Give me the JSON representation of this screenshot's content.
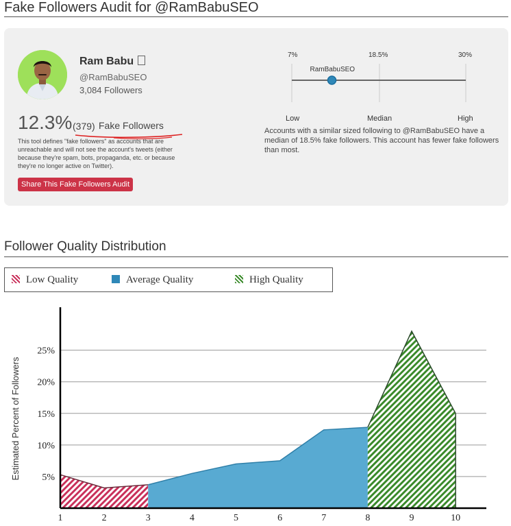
{
  "header": {
    "title": "Fake Followers Audit for @RamBabuSEO"
  },
  "profile": {
    "name": "Ram Babu",
    "handle": "@RamBabuSEO",
    "followers": "3,084 Followers",
    "avatar_color": "#9ee05a"
  },
  "audit": {
    "percent": "12.3%",
    "count": "(379)",
    "label": "Fake Followers",
    "description": "This tool defines \"fake followers\" as accounts that are unreachable and will not see the account's tweets (either because they're spam, bots, propaganda, etc. or because they're no longer active on Twitter).",
    "share_label": "Share This Fake Followers Audit",
    "accent_color": "#cc3347"
  },
  "scale": {
    "top_ticks": [
      "7%",
      "18.5%",
      "30%"
    ],
    "bottom_labels": [
      "Low",
      "Median",
      "High"
    ],
    "marker_label": "RamBabuSEO",
    "marker_value": 12.3,
    "min": 7,
    "median": 18.5,
    "max": 30,
    "marker_color": "#2f88b8"
  },
  "median_note": "Accounts with a similar sized following to @RamBabuSEO have a median of 18.5% fake followers. This account has fewer fake followers than most.",
  "section2": {
    "title": "Follower Quality Distribution"
  },
  "legend": {
    "low": "Low Quality",
    "average": "Average Quality",
    "high": "High Quality"
  },
  "chart_data": {
    "type": "area",
    "ylabel": "Estimated Percent of Followers",
    "x": [
      1,
      2,
      3,
      4,
      5,
      6,
      7,
      8,
      9,
      10
    ],
    "y_ticks": [
      "5%",
      "10%",
      "15%",
      "20%",
      "25%"
    ],
    "y_tick_values": [
      5,
      10,
      15,
      20,
      25
    ],
    "ylim": [
      0,
      30.5
    ],
    "xlim": [
      1,
      10.7
    ],
    "grid": true,
    "series": [
      {
        "name": "Low Quality",
        "x": [
          1,
          2,
          3
        ],
        "values": [
          5.3,
          3.2,
          3.7
        ],
        "color": "#c9305a",
        "pattern": "hatch"
      },
      {
        "name": "Average Quality",
        "x": [
          3,
          4,
          5,
          6,
          7,
          8
        ],
        "values": [
          3.7,
          5.5,
          7.0,
          7.5,
          12.4,
          12.8
        ],
        "color": "#58aad2",
        "pattern": "solid"
      },
      {
        "name": "High Quality",
        "x": [
          8,
          9,
          10
        ],
        "values": [
          12.8,
          28.0,
          15.0
        ],
        "color": "#3a8a2a",
        "pattern": "hatch"
      }
    ]
  }
}
